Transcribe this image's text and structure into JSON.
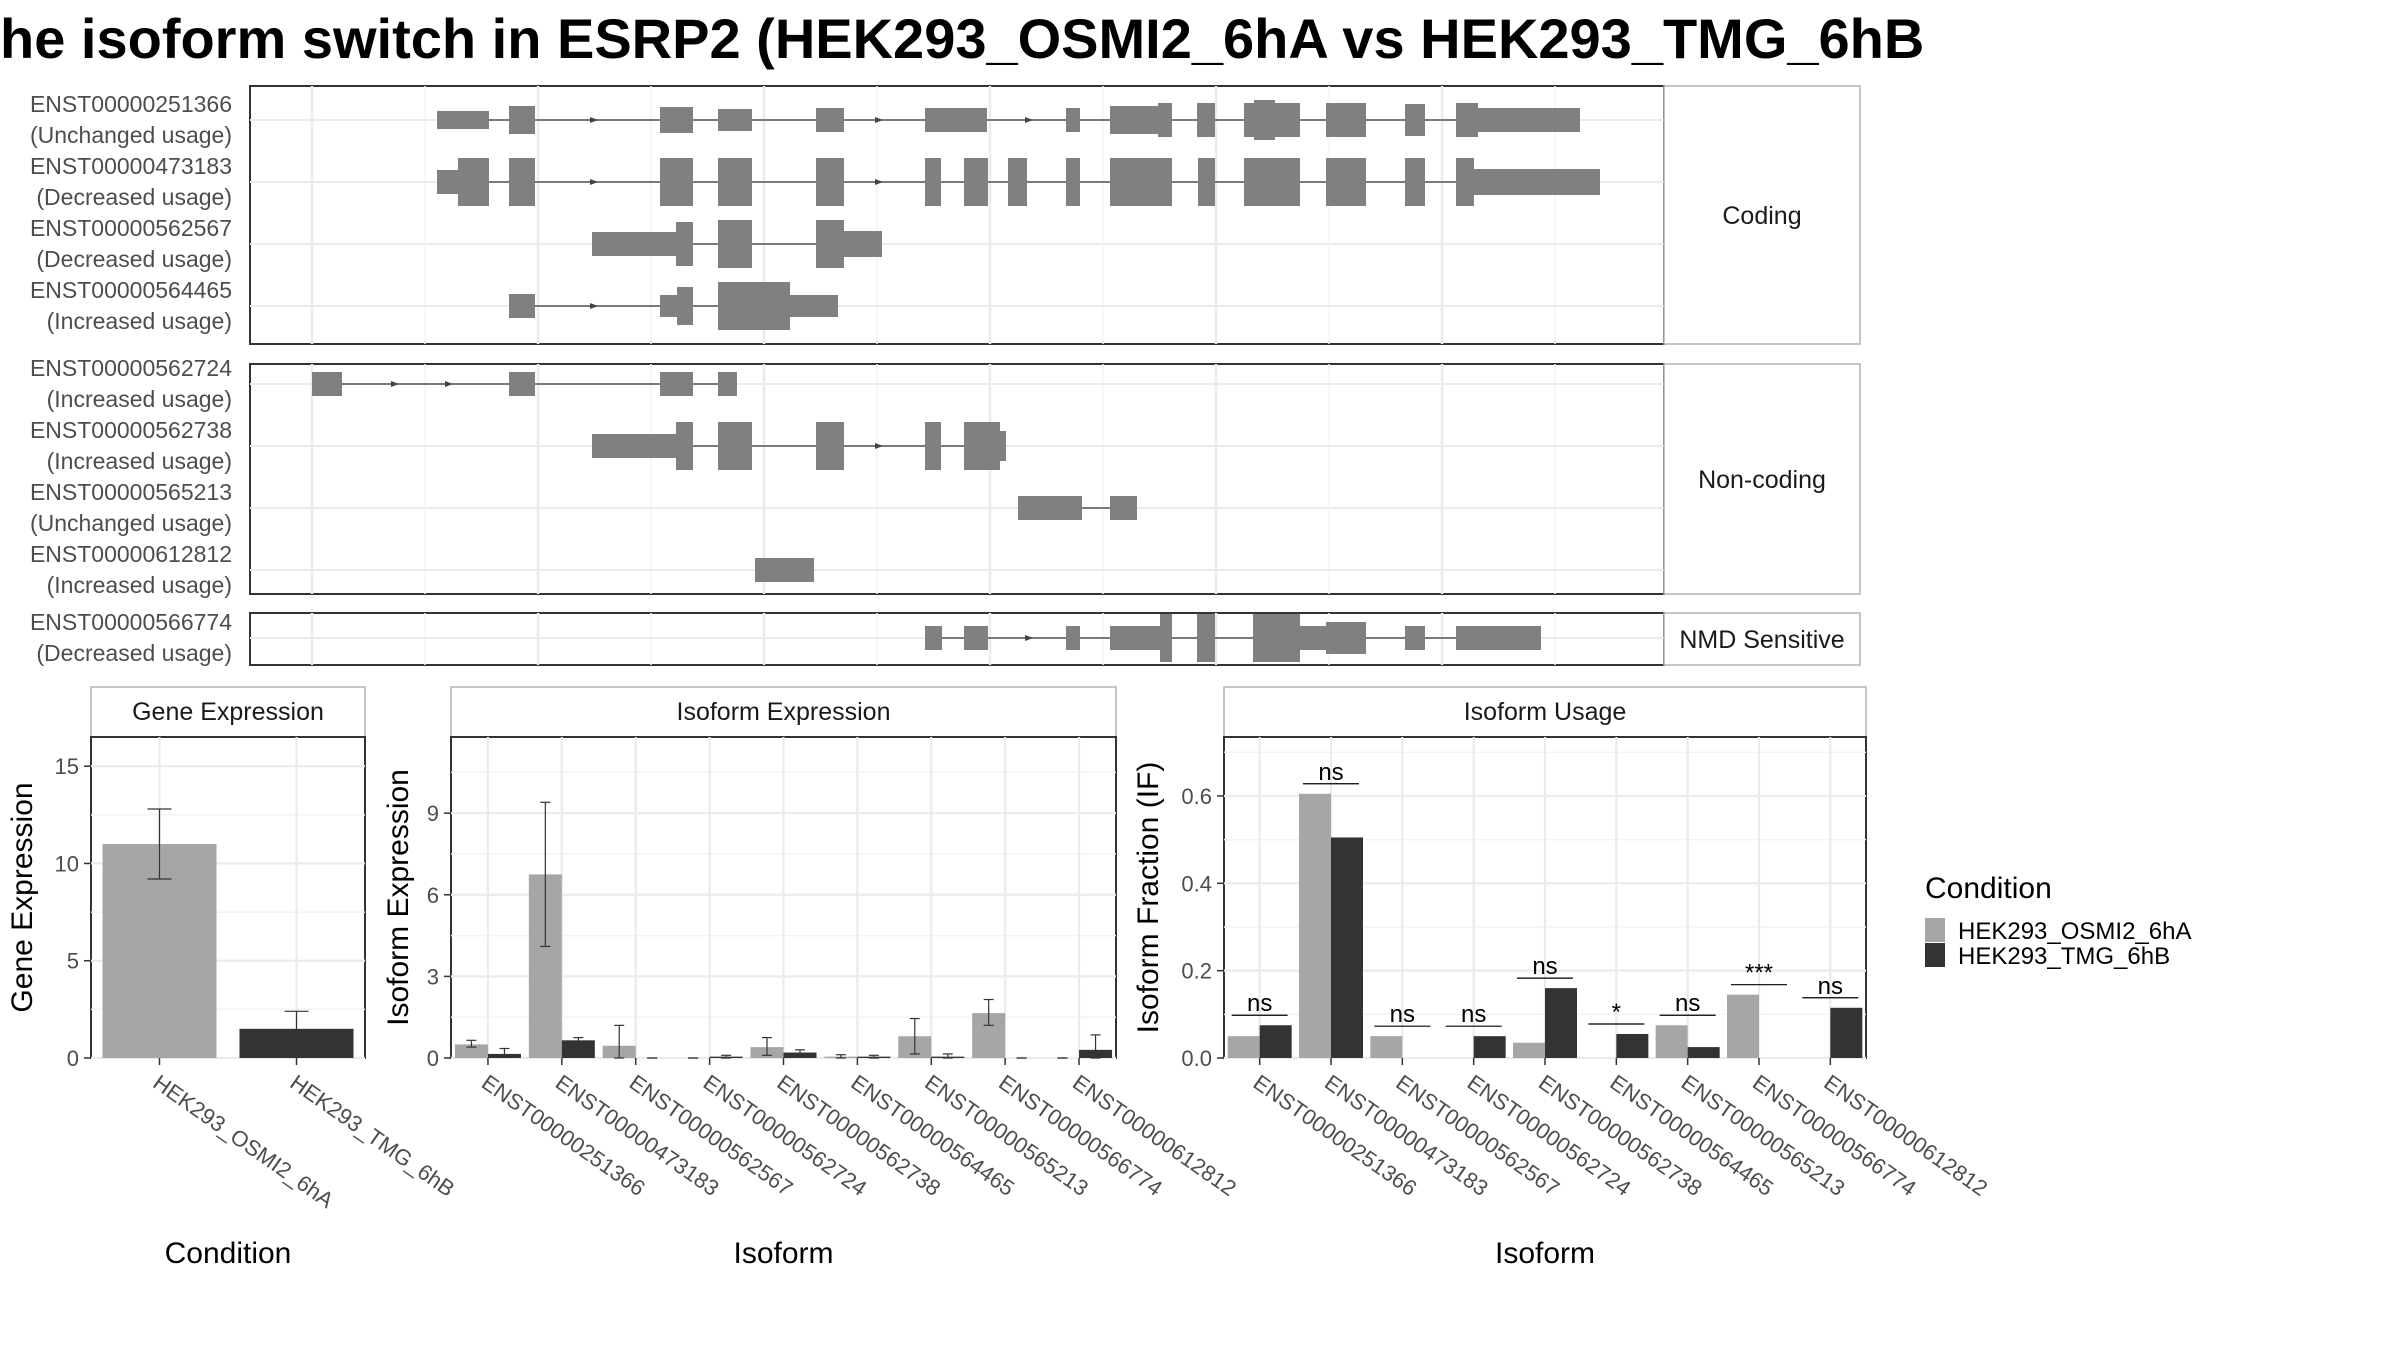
{
  "title": "he isoform switch in ESRP2 (HEK293_OSMI2_6hA vs HEK293_TMG_6hB",
  "colors": {
    "cond_a": "#a6a6a6",
    "cond_b": "#333333",
    "exon": "#808080",
    "grid": "#ebebeb",
    "panel_border": "#333333",
    "strip_border": "#b3b3b3"
  },
  "chart_data": [
    {
      "type": "gene-structure",
      "groups": [
        {
          "label": "Coding",
          "transcripts": [
            {
              "id": "ENST00000251366",
              "usage": "(Unchanged usage)"
            },
            {
              "id": "ENST00000473183",
              "usage": "(Decreased usage)"
            },
            {
              "id": "ENST00000562567",
              "usage": "(Decreased usage)"
            },
            {
              "id": "ENST00000564465",
              "usage": "(Increased usage)"
            }
          ]
        },
        {
          "label": "Non-coding",
          "transcripts": [
            {
              "id": "ENST00000562724",
              "usage": "(Increased usage)"
            },
            {
              "id": "ENST00000562738",
              "usage": "(Increased usage)"
            },
            {
              "id": "ENST00000565213",
              "usage": "(Unchanged usage)"
            },
            {
              "id": "ENST00000612812",
              "usage": "(Increased usage)"
            }
          ]
        },
        {
          "label": "NMD Sensitive",
          "transcripts": [
            {
              "id": "ENST00000566774",
              "usage": "(Decreased usage)"
            }
          ]
        }
      ]
    },
    {
      "type": "bar",
      "title": "Gene Expression",
      "xlabel": "Condition",
      "ylabel": "Gene Expression",
      "ylim": [
        0,
        16.5
      ],
      "yticks": [
        "0",
        "5",
        "10",
        "15"
      ],
      "categories": [
        "HEK293_OSMI2_6hA",
        "HEK293_TMG_6hB"
      ],
      "values": [
        11.0,
        1.5
      ],
      "err_low": [
        9.2,
        0.7
      ],
      "err_high": [
        12.8,
        2.4
      ]
    },
    {
      "type": "bar",
      "title": "Isoform Expression",
      "xlabel": "Isoform",
      "ylabel": "Isoform Expression",
      "ylim": [
        0,
        11.8
      ],
      "yticks": [
        "0",
        "3",
        "6",
        "9"
      ],
      "categories": [
        "ENST00000251366",
        "ENST00000473183",
        "ENST00000562567",
        "ENST00000562724",
        "ENST00000562738",
        "ENST00000564465",
        "ENST00000565213",
        "ENST00000566774",
        "ENST00000612812"
      ],
      "series": [
        {
          "name": "HEK293_OSMI2_6hA",
          "values": [
            0.5,
            6.75,
            0.45,
            0.0,
            0.4,
            0.05,
            0.8,
            1.65,
            0.0
          ],
          "err_low": [
            0.4,
            4.1,
            0.0,
            0.0,
            0.1,
            0.0,
            0.15,
            1.2,
            0.0
          ],
          "err_high": [
            0.65,
            9.4,
            1.2,
            0.0,
            0.75,
            0.12,
            1.45,
            2.15,
            0.0
          ]
        },
        {
          "name": "HEK293_TMG_6hB",
          "values": [
            0.15,
            0.65,
            0.0,
            0.05,
            0.2,
            0.05,
            0.05,
            0.0,
            0.3
          ],
          "err_low": [
            0.05,
            0.55,
            0.0,
            0.0,
            0.1,
            0.0,
            0.0,
            0.0,
            0.0
          ],
          "err_high": [
            0.35,
            0.75,
            0.0,
            0.1,
            0.3,
            0.1,
            0.15,
            0.0,
            0.85
          ]
        }
      ]
    },
    {
      "type": "bar",
      "title": "Isoform Usage",
      "xlabel": "Isoform",
      "ylabel": "Isoform Fraction (IF)",
      "ylim": [
        0,
        0.735
      ],
      "yticks": [
        "0.0",
        "0.2",
        "0.4",
        "0.6"
      ],
      "categories": [
        "ENST00000251366",
        "ENST00000473183",
        "ENST00000562567",
        "ENST00000562724",
        "ENST00000562738",
        "ENST00000564465",
        "ENST00000565213",
        "ENST00000566774",
        "ENST00000612812"
      ],
      "series": [
        {
          "name": "HEK293_OSMI2_6hA",
          "values": [
            0.05,
            0.605,
            0.05,
            0.0,
            0.035,
            0.0,
            0.075,
            0.145,
            0.0
          ]
        },
        {
          "name": "HEK293_TMG_6hB",
          "values": [
            0.075,
            0.505,
            0.0,
            0.05,
            0.16,
            0.055,
            0.025,
            0.0,
            0.115
          ]
        }
      ],
      "significance": [
        "ns",
        "ns",
        "ns",
        "ns",
        "ns",
        "*",
        "ns",
        "***",
        "ns"
      ]
    }
  ],
  "legend": {
    "title": "Condition",
    "items": [
      "HEK293_OSMI2_6hA",
      "HEK293_TMG_6hB"
    ]
  }
}
